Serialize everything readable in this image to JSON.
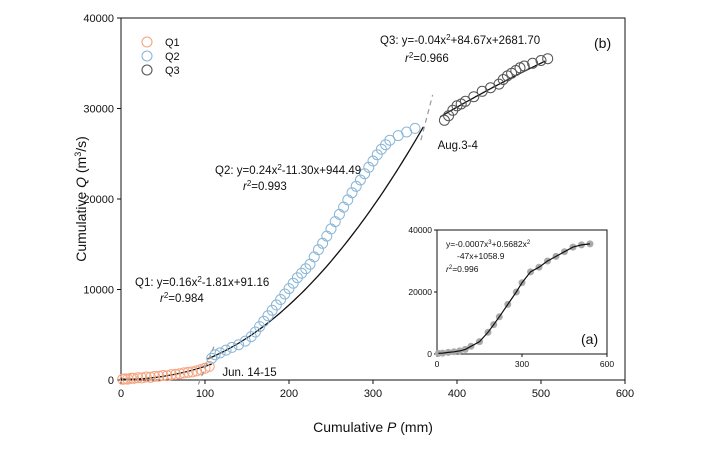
{
  "chart_data": [
    {
      "type": "scatter",
      "panel_label": "(b)",
      "xlabel_text": "Cumulative ",
      "xlabel_var": "P",
      "xlabel_unit": " (mm)",
      "ylabel_text": "Cumulative ",
      "ylabel_var": "Q",
      "ylabel_unit": " (m",
      "ylabel_sup": "3",
      "ylabel_tail": "/s)",
      "xlim": [
        0,
        600
      ],
      "ylim": [
        0,
        40000
      ],
      "xticks": [
        0,
        100,
        200,
        300,
        400,
        500,
        600
      ],
      "yticks": [
        0,
        10000,
        20000,
        30000,
        40000
      ],
      "legend_position": "top-left",
      "series": [
        {
          "name": "Q1",
          "color": "#f4a582",
          "points": [
            [
              2,
              80
            ],
            [
              5,
              120
            ],
            [
              8,
              100
            ],
            [
              12,
              200
            ],
            [
              15,
              180
            ],
            [
              20,
              250
            ],
            [
              25,
              230
            ],
            [
              30,
              330
            ],
            [
              35,
              300
            ],
            [
              40,
              400
            ],
            [
              45,
              420
            ],
            [
              50,
              500
            ],
            [
              55,
              480
            ],
            [
              60,
              600
            ],
            [
              65,
              620
            ],
            [
              70,
              700
            ],
            [
              75,
              780
            ],
            [
              80,
              850
            ],
            [
              85,
              900
            ],
            [
              90,
              1000
            ],
            [
              95,
              1150
            ],
            [
              100,
              1300
            ],
            [
              105,
              1500
            ]
          ],
          "fit": {
            "a": 0.16,
            "b": -1.81,
            "c": 91.16,
            "x_range": [
              0,
              108
            ]
          },
          "equation_prefix": "Q1: y=0.16x",
          "equation_suffix": "-1.81x+91.16",
          "r2_value": "=0.984"
        },
        {
          "name": "Q2",
          "color": "#8ab6d6",
          "points": [
            [
              108,
              2400
            ],
            [
              112,
              2800
            ],
            [
              118,
              3000
            ],
            [
              125,
              3300
            ],
            [
              132,
              3600
            ],
            [
              140,
              3900
            ],
            [
              148,
              4300
            ],
            [
              155,
              4800
            ],
            [
              160,
              5300
            ],
            [
              165,
              5900
            ],
            [
              170,
              6500
            ],
            [
              175,
              7100
            ],
            [
              180,
              7700
            ],
            [
              185,
              8300
            ],
            [
              190,
              8900
            ],
            [
              195,
              9500
            ],
            [
              200,
              10100
            ],
            [
              205,
              10700
            ],
            [
              210,
              11300
            ],
            [
              215,
              11800
            ],
            [
              220,
              12300
            ],
            [
              225,
              12800
            ],
            [
              230,
              13600
            ],
            [
              235,
              14400
            ],
            [
              240,
              15100
            ],
            [
              245,
              15900
            ],
            [
              250,
              16700
            ],
            [
              255,
              17500
            ],
            [
              260,
              18300
            ],
            [
              265,
              19100
            ],
            [
              270,
              19900
            ],
            [
              275,
              20700
            ],
            [
              280,
              21400
            ],
            [
              285,
              22100
            ],
            [
              290,
              22800
            ],
            [
              295,
              23500
            ],
            [
              300,
              24200
            ],
            [
              305,
              24900
            ],
            [
              310,
              25500
            ],
            [
              315,
              26000
            ],
            [
              320,
              26500
            ],
            [
              330,
              27000
            ],
            [
              340,
              27400
            ],
            [
              350,
              27800
            ]
          ],
          "fit": {
            "a": 0.24,
            "b": -11.3,
            "c": 944.49,
            "x_range": [
              103,
              360
            ]
          },
          "equation_prefix": "Q2: y=0.24x",
          "equation_suffix": "-11.30x+944.49",
          "r2_value": "=0.993"
        },
        {
          "name": "Q3",
          "color": "#555555",
          "points": [
            [
              385,
              28700
            ],
            [
              390,
              29200
            ],
            [
              395,
              29800
            ],
            [
              400,
              30300
            ],
            [
              405,
              30500
            ],
            [
              410,
              30800
            ],
            [
              420,
              31300
            ],
            [
              430,
              31900
            ],
            [
              440,
              32300
            ],
            [
              450,
              32700
            ],
            [
              455,
              33200
            ],
            [
              460,
              33600
            ],
            [
              465,
              33900
            ],
            [
              470,
              34200
            ],
            [
              475,
              34500
            ],
            [
              480,
              34700
            ],
            [
              490,
              35000
            ],
            [
              500,
              35300
            ],
            [
              508,
              35500
            ]
          ],
          "fit": {
            "a": -0.04,
            "b": 84.67,
            "c": 2681.7,
            "x_range": [
              380,
              505
            ]
          },
          "equation_prefix": "Q3: y=-0.04x",
          "equation_suffix": "+84.67x+2681.70",
          "r2_value": "=0.966"
        }
      ],
      "annotations": [
        {
          "text": "Jun. 14-15",
          "x": 104
        },
        {
          "text": "Aug.3-4",
          "x": 365
        }
      ]
    },
    {
      "type": "scatter",
      "panel_label": "(a)",
      "xlim": [
        0,
        600
      ],
      "ylim": [
        0,
        40000
      ],
      "xticks": [
        0,
        300,
        600
      ],
      "yticks": [
        0,
        20000,
        40000
      ],
      "point_color": "#aaaaaa",
      "equation_line1": "y=-0.0007x",
      "equation_line1_mid": "+0.5682x",
      "equation_line2": "-47x+1058.9",
      "r2_value": "=0.996",
      "fit": {
        "a3": -0.0007,
        "a2": 0.5682,
        "a1": -47,
        "a0": 1058.9
      },
      "points": [
        [
          5,
          200
        ],
        [
          20,
          300
        ],
        [
          40,
          500
        ],
        [
          60,
          700
        ],
        [
          80,
          1000
        ],
        [
          100,
          1500
        ],
        [
          120,
          2500
        ],
        [
          150,
          4000
        ],
        [
          180,
          7000
        ],
        [
          200,
          9500
        ],
        [
          220,
          12000
        ],
        [
          250,
          16000
        ],
        [
          280,
          20000
        ],
        [
          300,
          23000
        ],
        [
          330,
          26500
        ],
        [
          360,
          28000
        ],
        [
          390,
          30000
        ],
        [
          420,
          31500
        ],
        [
          450,
          33000
        ],
        [
          480,
          34500
        ],
        [
          510,
          35200
        ],
        [
          540,
          35500
        ]
      ]
    }
  ]
}
